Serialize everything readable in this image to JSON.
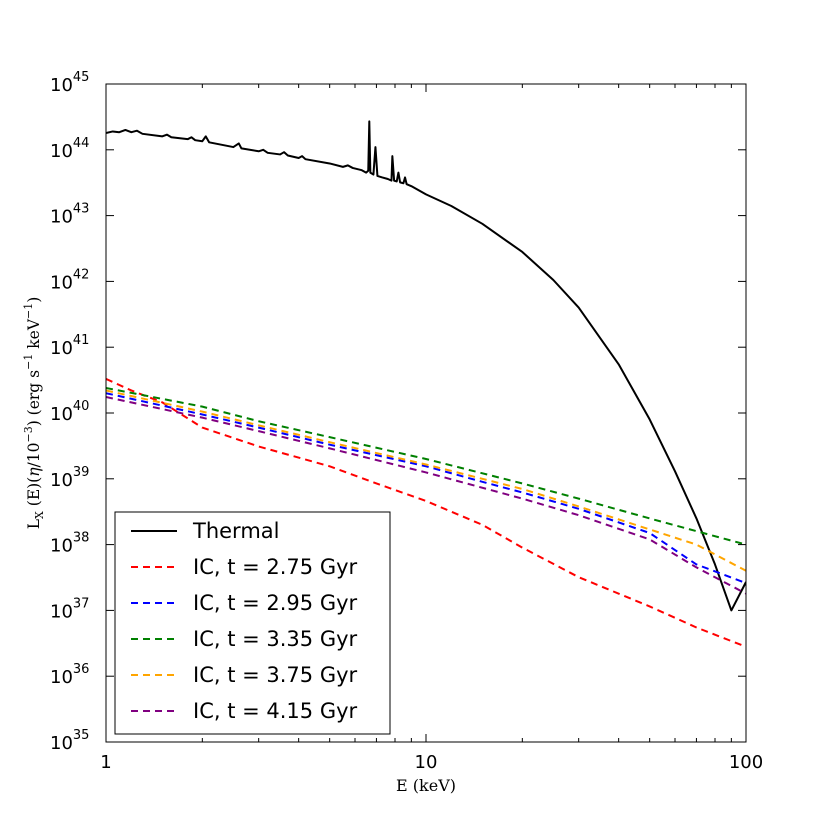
{
  "chart_data": {
    "type": "line",
    "title": "",
    "xlabel": "E (keV)",
    "ylabel": "L_X (E)(η/10^-3) (erg s^-1 keV^-1)",
    "xscale": "log",
    "yscale": "log",
    "xlim": [
      1,
      100
    ],
    "ylim": [
      1e+35,
      1e+45
    ],
    "x_ticks": [
      {
        "value": 1,
        "label": "1"
      },
      {
        "value": 10,
        "label": "10"
      },
      {
        "value": 100,
        "label": "100"
      }
    ],
    "y_ticks": [
      {
        "value": 1e+35,
        "base": "10",
        "exp": "35"
      },
      {
        "value": 1e+36,
        "base": "10",
        "exp": "36"
      },
      {
        "value": 1e+37,
        "base": "10",
        "exp": "37"
      },
      {
        "value": 1e+38,
        "base": "10",
        "exp": "38"
      },
      {
        "value": 1e+39,
        "base": "10",
        "exp": "39"
      },
      {
        "value": 1e+40,
        "base": "10",
        "exp": "40"
      },
      {
        "value": 1e+41,
        "base": "10",
        "exp": "41"
      },
      {
        "value": 1e+42,
        "base": "10",
        "exp": "42"
      },
      {
        "value": 1e+43,
        "base": "10",
        "exp": "43"
      },
      {
        "value": 1e+44,
        "base": "10",
        "exp": "44"
      },
      {
        "value": 1e+45,
        "base": "10",
        "exp": "45"
      }
    ],
    "legend_position": "lower-left",
    "series": [
      {
        "name": "Thermal",
        "color": "#000000",
        "dash": "solid",
        "points": [
          [
            1,
            1.8e+44
          ],
          [
            1.05,
            1.9e+44
          ],
          [
            1.1,
            1.85e+44
          ],
          [
            1.15,
            2e+44
          ],
          [
            1.2,
            1.85e+44
          ],
          [
            1.25,
            1.95e+44
          ],
          [
            1.3,
            1.75e+44
          ],
          [
            1.5,
            1.6e+44
          ],
          [
            1.55,
            1.7e+44
          ],
          [
            1.6,
            1.55e+44
          ],
          [
            1.8,
            1.45e+44
          ],
          [
            1.85,
            1.55e+44
          ],
          [
            1.9,
            1.4e+44
          ],
          [
            2.0,
            1.35e+44
          ],
          [
            2.05,
            1.6e+44
          ],
          [
            2.1,
            1.3e+44
          ],
          [
            2.5,
            1.1e+44
          ],
          [
            2.6,
            1.25e+44
          ],
          [
            2.65,
            1.05e+44
          ],
          [
            3.0,
            9.5e+43
          ],
          [
            3.1,
            1e+44
          ],
          [
            3.2,
            9e+43
          ],
          [
            3.5,
            8.5e+43
          ],
          [
            3.6,
            9.2e+43
          ],
          [
            3.7,
            8.2e+43
          ],
          [
            4.0,
            7.5e+43
          ],
          [
            4.1,
            8e+43
          ],
          [
            4.2,
            7.2e+43
          ],
          [
            5.0,
            6.2e+43
          ],
          [
            5.5,
            5.5e+43
          ],
          [
            5.7,
            5.8e+43
          ],
          [
            5.9,
            5.3e+43
          ],
          [
            6.3,
            4.9e+43
          ],
          [
            6.5,
            4.5e+43
          ],
          [
            6.6,
            4.8e+43
          ],
          [
            6.65,
            2.7e+44
          ],
          [
            6.7,
            4.5e+43
          ],
          [
            6.85,
            4.2e+43
          ],
          [
            6.95,
            1.1e+44
          ],
          [
            7.05,
            4e+43
          ],
          [
            7.3,
            3.8e+43
          ],
          [
            7.6,
            3.6e+43
          ],
          [
            7.8,
            3.4e+43
          ],
          [
            7.85,
            8e+43
          ],
          [
            7.95,
            3.4e+43
          ],
          [
            8.1,
            3.3e+43
          ],
          [
            8.2,
            4.5e+43
          ],
          [
            8.3,
            3.2e+43
          ],
          [
            8.5,
            3.1e+43
          ],
          [
            8.6,
            3.8e+43
          ],
          [
            8.7,
            3e+43
          ],
          [
            9.0,
            2.8e+43
          ],
          [
            10,
            2.1e+43
          ],
          [
            12,
            1.4e+43
          ],
          [
            15,
            7.5e+42
          ],
          [
            20,
            2.8e+42
          ],
          [
            25,
            1.05e+42
          ],
          [
            30,
            4e+41
          ],
          [
            40,
            5.5e+40
          ],
          [
            50,
            8e+39
          ],
          [
            60,
            1.3e+39
          ],
          [
            70,
            2.5e+38
          ],
          [
            80,
            5e+37
          ],
          [
            90,
            1e+37
          ],
          [
            100,
            2.7e+37
          ]
        ]
      },
      {
        "name": "IC, t = 2.75 Gyr",
        "color": "#ff0000",
        "dash": "dashed",
        "points": [
          [
            1,
            3.3e+40
          ],
          [
            1.2,
            2.2e+40
          ],
          [
            1.5,
            1.45e+40
          ],
          [
            2,
            6e+39
          ],
          [
            3,
            3.1e+39
          ],
          [
            5,
            1.55e+39
          ],
          [
            7,
            8.5e+38
          ],
          [
            10,
            4.6e+38
          ],
          [
            15,
            2e+38
          ],
          [
            20,
            9e+37
          ],
          [
            30,
            3.2e+37
          ],
          [
            50,
            1.15e+37
          ],
          [
            70,
            5.5e+36
          ],
          [
            100,
            2.8e+36
          ]
        ]
      },
      {
        "name": "IC, t = 2.95 Gyr",
        "color": "#0000ff",
        "dash": "dashed",
        "points": [
          [
            1,
            2e+40
          ],
          [
            2,
            9.5e+39
          ],
          [
            3,
            6e+39
          ],
          [
            5,
            3.3e+39
          ],
          [
            10,
            1.55e+39
          ],
          [
            15,
            9e+38
          ],
          [
            20,
            6.2e+38
          ],
          [
            30,
            3.5e+38
          ],
          [
            50,
            1.5e+38
          ],
          [
            70,
            5e+37
          ],
          [
            100,
            2.6e+37
          ]
        ]
      },
      {
        "name": "IC, t = 3.35 Gyr",
        "color": "#008000",
        "dash": "dashed",
        "points": [
          [
            1,
            2.4e+40
          ],
          [
            2,
            1.25e+40
          ],
          [
            3,
            7.5e+39
          ],
          [
            5,
            4.3e+39
          ],
          [
            10,
            2e+39
          ],
          [
            20,
            8.5e+38
          ],
          [
            30,
            5e+38
          ],
          [
            50,
            2.5e+38
          ],
          [
            70,
            1.6e+38
          ],
          [
            100,
            1e+38
          ]
        ]
      },
      {
        "name": "IC, t = 3.75 Gyr",
        "color": "#ffa500",
        "dash": "dashed",
        "points": [
          [
            1,
            2.2e+40
          ],
          [
            2,
            1.05e+40
          ],
          [
            3,
            6.5e+39
          ],
          [
            5,
            3.6e+39
          ],
          [
            10,
            1.65e+39
          ],
          [
            20,
            7e+38
          ],
          [
            30,
            3.8e+38
          ],
          [
            50,
            1.7e+38
          ],
          [
            70,
            1e+38
          ],
          [
            100,
            4e+37
          ]
        ]
      },
      {
        "name": "IC, t = 4.15 Gyr",
        "color": "#800080",
        "dash": "dashed",
        "points": [
          [
            1,
            1.75e+40
          ],
          [
            2,
            8.5e+39
          ],
          [
            3,
            5.3e+39
          ],
          [
            5,
            2.9e+39
          ],
          [
            10,
            1.25e+39
          ],
          [
            20,
            5e+38
          ],
          [
            30,
            2.8e+38
          ],
          [
            50,
            1.2e+38
          ],
          [
            70,
            4.5e+37
          ],
          [
            100,
            1.8e+37
          ]
        ]
      }
    ]
  }
}
